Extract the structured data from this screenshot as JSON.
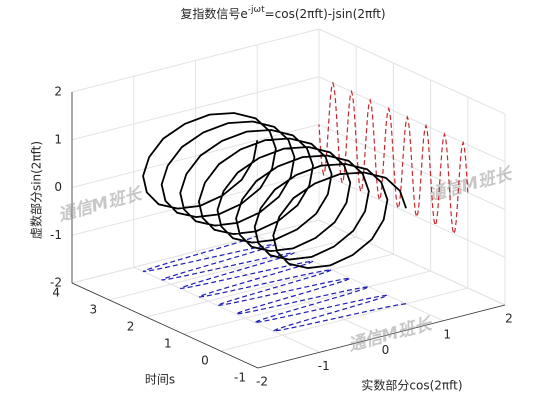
{
  "chart_data": {
    "type": "line3d",
    "title": {
      "base": "复指数信号e",
      "sup": "-jωt",
      "rest": "=cos(2πft)-jsin(2πft)"
    },
    "xlabel": "实数部分cos(2πft)",
    "ylabel": "时间s",
    "zlabel": "虚数部分sin(2πft)",
    "xlim": [
      -2,
      2
    ],
    "xticks": [
      -2,
      -1,
      0,
      1,
      2
    ],
    "ylim": [
      -1,
      4
    ],
    "yticks": [
      -1,
      0,
      1,
      2,
      3,
      4
    ],
    "zlim": [
      -2,
      2
    ],
    "zticks": [
      -2,
      -1,
      0,
      1,
      2
    ],
    "grid": true,
    "series": [
      {
        "color": "#000000",
        "t": [
          0,
          0.03125,
          0.0625,
          0.09375,
          0.125,
          0.15625,
          0.1875,
          0.21875,
          0.25,
          0.28125,
          0.3125,
          0.34375,
          0.375,
          0.40625,
          0.4375,
          0.46875,
          0.5,
          0.53125,
          0.5625,
          0.59375,
          0.625,
          0.65625,
          0.6875,
          0.71875,
          0.75,
          0.78125,
          0.8125,
          0.84375,
          0.875,
          0.90625,
          0.9375,
          0.96875,
          1,
          1.03125,
          1.0625,
          1.09375,
          1.125,
          1.15625,
          1.1875,
          1.21875,
          1.25,
          1.28125,
          1.3125,
          1.34375,
          1.375,
          1.40625,
          1.4375,
          1.46875,
          1.5,
          1.53125,
          1.5625,
          1.59375,
          1.625,
          1.65625,
          1.6875,
          1.71875,
          1.75,
          1.78125,
          1.8125,
          1.84375,
          1.875,
          1.90625,
          1.9375,
          1.96875,
          2,
          2.03125,
          2.0625,
          2.09375,
          2.125,
          2.15625,
          2.1875,
          2.21875,
          2.25,
          2.28125,
          2.3125,
          2.34375,
          2.375,
          2.40625,
          2.4375,
          2.46875,
          2.5,
          2.53125,
          2.5625,
          2.59375,
          2.625,
          2.65625,
          2.6875,
          2.71875,
          2.75,
          2.78125,
          2.8125,
          2.84375,
          2.875,
          2.90625,
          2.9375,
          2.96875,
          3,
          3.03125,
          3.0625,
          3.09375,
          3.125,
          3.15625,
          3.1875,
          3.21875,
          3.25,
          3.28125,
          3.3125,
          3.34375,
          3.375,
          3.40625,
          3.4375,
          3.46875,
          3.5,
          3.53125,
          3.5625,
          3.59375,
          3.625,
          3.65625,
          3.6875,
          3.71875,
          3.75,
          3.78125,
          3.8125,
          3.84375,
          3.875,
          3.90625,
          3.9375,
          3.96875,
          4
        ],
        "re": [
          1,
          0.92,
          0.71,
          0.38,
          0,
          -0.38,
          -0.71,
          -0.92,
          -1,
          -0.92,
          -0.71,
          -0.38,
          0,
          0.38,
          0.71,
          0.92,
          1,
          0.92,
          0.71,
          0.38,
          0,
          -0.38,
          -0.71,
          -0.92,
          -1,
          -0.92,
          -0.71,
          -0.38,
          0,
          0.38,
          0.71,
          0.92,
          1,
          0.92,
          0.71,
          0.38,
          0,
          -0.38,
          -0.71,
          -0.92,
          -1,
          -0.92,
          -0.71,
          -0.38,
          0,
          0.38,
          0.71,
          0.92,
          1,
          0.92,
          0.71,
          0.38,
          0,
          -0.38,
          -0.71,
          -0.92,
          -1,
          -0.92,
          -0.71,
          -0.38,
          0,
          0.38,
          0.71,
          0.92,
          1,
          0.92,
          0.71,
          0.38,
          0,
          -0.38,
          -0.71,
          -0.92,
          -1,
          -0.92,
          -0.71,
          -0.38,
          0,
          0.38,
          0.71,
          0.92,
          1,
          0.92,
          0.71,
          0.38,
          0,
          -0.38,
          -0.71,
          -0.92,
          -1,
          -0.92,
          -0.71,
          -0.38,
          0,
          0.38,
          0.71,
          0.92,
          1,
          0.92,
          0.71,
          0.38,
          0,
          -0.38,
          -0.71,
          -0.92,
          -1,
          -0.92,
          -0.71,
          -0.38,
          0,
          0.38,
          0.71,
          0.92,
          1,
          0.92,
          0.71,
          0.38,
          0,
          -0.38,
          -0.71,
          -0.92,
          -1,
          -0.92,
          -0.71,
          -0.38,
          0,
          0.38,
          0.71,
          0.92,
          1
        ],
        "im": [
          0,
          0.38,
          0.71,
          0.92,
          1,
          0.92,
          0.71,
          0.38,
          0,
          -0.38,
          -0.71,
          -0.92,
          -1,
          -0.92,
          -0.71,
          -0.38,
          0,
          0.38,
          0.71,
          0.92,
          1,
          0.92,
          0.71,
          0.38,
          0,
          -0.38,
          -0.71,
          -0.92,
          -1,
          -0.92,
          -0.71,
          -0.38,
          0,
          0.38,
          0.71,
          0.92,
          1,
          0.92,
          0.71,
          0.38,
          0,
          -0.38,
          -0.71,
          -0.92,
          -1,
          -0.92,
          -0.71,
          -0.38,
          0,
          0.38,
          0.71,
          0.92,
          1,
          0.92,
          0.71,
          0.38,
          0,
          -0.38,
          -0.71,
          -0.92,
          -1,
          -0.92,
          -0.71,
          -0.38,
          0,
          0.38,
          0.71,
          0.92,
          1,
          0.92,
          0.71,
          0.38,
          0,
          -0.38,
          -0.71,
          -0.92,
          -1,
          -0.92,
          -0.71,
          -0.38,
          0,
          0.38,
          0.71,
          0.92,
          1,
          0.92,
          0.71,
          0.38,
          0,
          -0.38,
          -0.71,
          -0.92,
          -1,
          -0.92,
          -0.71,
          -0.38,
          0,
          0.38,
          0.71,
          0.92,
          1,
          0.92,
          0.71,
          0.38,
          0,
          -0.38,
          -0.71,
          -0.92,
          -1,
          -0.92,
          -0.71,
          -0.38,
          0,
          0.38,
          0.71,
          0.92,
          1,
          0.92,
          0.71,
          0.38,
          0,
          -0.38,
          -0.71,
          -0.92,
          -1,
          -0.92,
          -0.71,
          -0.38,
          0
        ]
      }
    ],
    "projections": [
      {
        "plane": "floor",
        "color": "#1f1fb4"
      },
      {
        "plane": "wall",
        "color": "#c8282d"
      }
    ],
    "watermarks": [
      "通信M班长",
      "通信M班长",
      "通信M班长"
    ]
  }
}
